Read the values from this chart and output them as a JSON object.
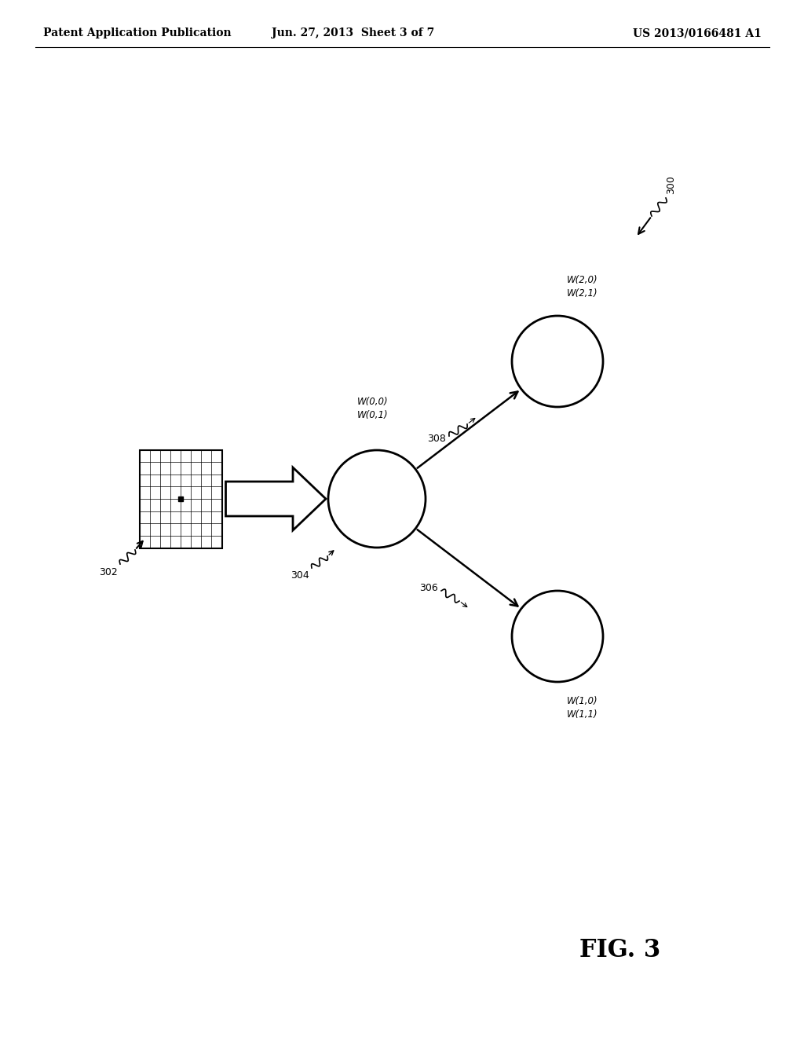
{
  "bg_color": "#ffffff",
  "header_left": "Patent Application Publication",
  "header_center": "Jun. 27, 2013  Sheet 3 of 7",
  "header_right": "US 2013/0166481 A1",
  "header_fontsize": 10,
  "fig_label": "FIG. 3",
  "fig_label_fontsize": 22,
  "ref_300": "300",
  "ref_302": "302",
  "ref_304": "304",
  "ref_306": "306",
  "ref_308": "308",
  "label_w00_w01": "W(0,0)\nW(0,1)",
  "label_w10_w11": "W(1,0)\nW(1,1)",
  "label_w20_w21": "W(2,0)\nW(2,1)",
  "text_color": "#000000"
}
